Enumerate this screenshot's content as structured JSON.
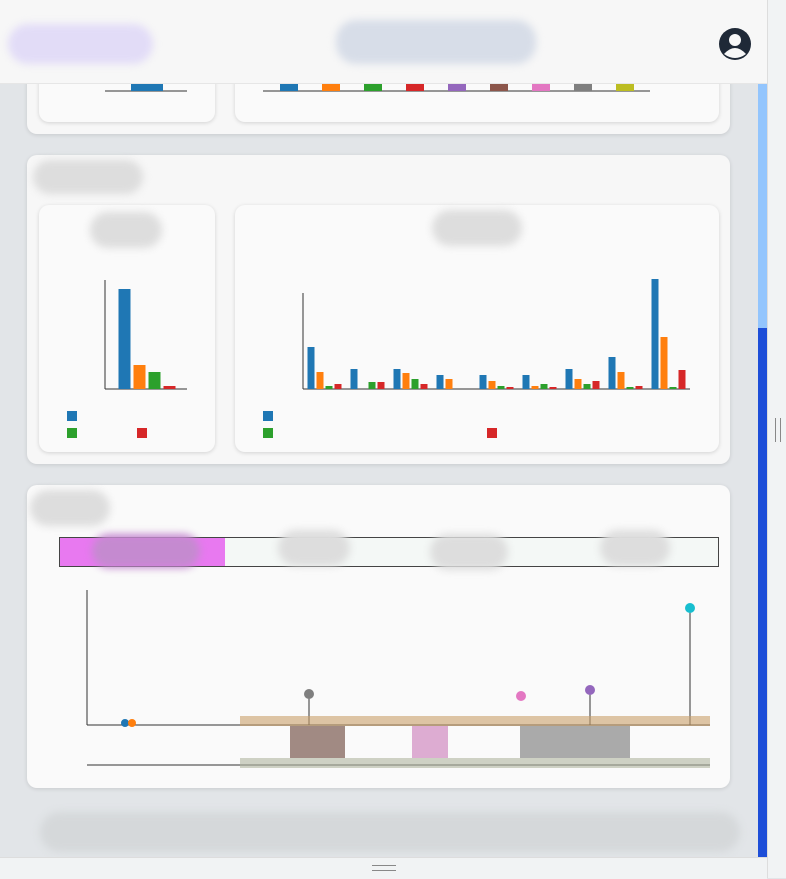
{
  "chart_data": [
    {
      "type": "bar",
      "categories": [
        null
      ],
      "ylim": [
        0,
        110
      ],
      "series": [
        {
          "color": "#1f77b4",
          "values": [
            100
          ]
        },
        {
          "color": "#ff7f0e",
          "values": [
            24
          ]
        },
        {
          "color": "#2ca02c",
          "values": [
            17
          ]
        },
        {
          "color": "#d62728",
          "values": [
            3
          ]
        }
      ]
    },
    {
      "type": "bar",
      "categories": [
        null,
        null,
        null,
        null,
        null,
        null,
        null,
        null,
        null
      ],
      "ylim": [
        0,
        110
      ],
      "series": [
        {
          "color": "#1f77b4",
          "values": [
            42,
            20,
            20,
            14,
            14,
            14,
            20,
            32,
            110
          ]
        },
        {
          "color": "#ff7f0e",
          "values": [
            17,
            0,
            16,
            10,
            8,
            3,
            10,
            17,
            52
          ]
        },
        {
          "color": "#2ca02c",
          "values": [
            3,
            7,
            10,
            0,
            3,
            5,
            5,
            2,
            2
          ]
        },
        {
          "color": "#d62728",
          "values": [
            5,
            7,
            5,
            0,
            2,
            2,
            8,
            3,
            19
          ]
        }
      ]
    }
  ]
}
